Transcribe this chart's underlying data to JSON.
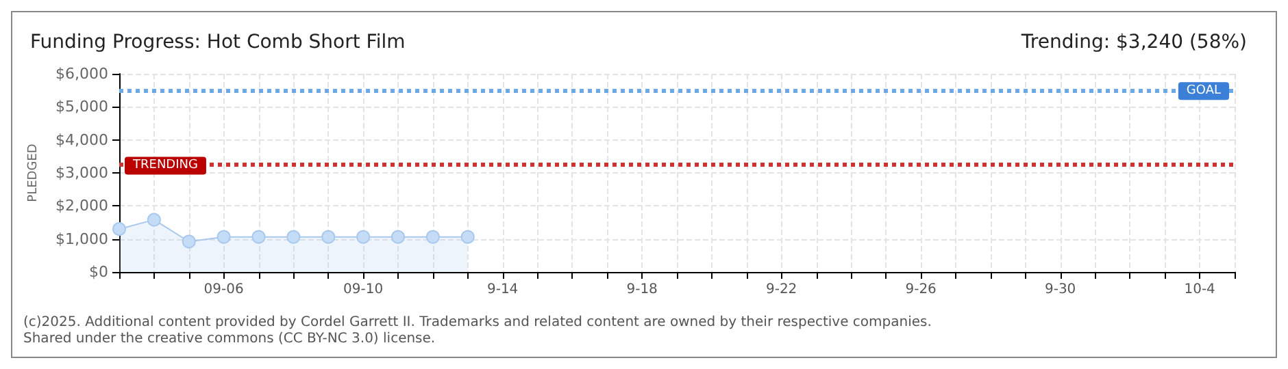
{
  "chart_data": {
    "type": "area",
    "title": "Funding Progress: Hot Comb Short Film",
    "subtitle": "Trending: $3,240 (58%)",
    "ylabel": "PLEDGED",
    "x": [
      "2025-09-03",
      "2025-09-04",
      "2025-09-05",
      "2025-09-06",
      "2025-09-07",
      "2025-09-08",
      "2025-09-09",
      "2025-09-10",
      "2025-09-11",
      "2025-09-12",
      "2025-09-13"
    ],
    "series": [
      {
        "color": "#a9c8ee",
        "values": [
          1300,
          1580,
          920,
          1060,
          1060,
          1060,
          1060,
          1060,
          1060,
          1060,
          1060
        ]
      }
    ],
    "xlim": [
      "2025-09-03",
      "2025-10-05"
    ],
    "xticks": [
      {
        "value": "2025-09-03",
        "label": null
      },
      {
        "value": "2025-09-04",
        "label": null
      },
      {
        "value": "2025-09-05",
        "label": null
      },
      {
        "value": "2025-09-06",
        "label": "09-06"
      },
      {
        "value": "2025-09-07",
        "label": null
      },
      {
        "value": "2025-09-08",
        "label": null
      },
      {
        "value": "2025-09-09",
        "label": null
      },
      {
        "value": "2025-09-10",
        "label": "09-10"
      },
      {
        "value": "2025-09-11",
        "label": null
      },
      {
        "value": "2025-09-12",
        "label": null
      },
      {
        "value": "2025-09-13",
        "label": null
      },
      {
        "value": "2025-09-14",
        "label": "9-14"
      },
      {
        "value": "2025-09-15",
        "label": null
      },
      {
        "value": "2025-09-16",
        "label": null
      },
      {
        "value": "2025-09-17",
        "label": null
      },
      {
        "value": "2025-09-18",
        "label": "9-18"
      },
      {
        "value": "2025-09-19",
        "label": null
      },
      {
        "value": "2025-09-20",
        "label": null
      },
      {
        "value": "2025-09-21",
        "label": null
      },
      {
        "value": "2025-09-22",
        "label": "9-22"
      },
      {
        "value": "2025-09-23",
        "label": null
      },
      {
        "value": "2025-09-24",
        "label": null
      },
      {
        "value": "2025-09-25",
        "label": null
      },
      {
        "value": "2025-09-26",
        "label": "9-26"
      },
      {
        "value": "2025-09-27",
        "label": null
      },
      {
        "value": "2025-09-28",
        "label": null
      },
      {
        "value": "2025-09-29",
        "label": null
      },
      {
        "value": "2025-09-30",
        "label": "9-30"
      },
      {
        "value": "2025-10-01",
        "label": null
      },
      {
        "value": "2025-10-02",
        "label": null
      },
      {
        "value": "2025-10-03",
        "label": null
      },
      {
        "value": "2025-10-04",
        "label": "10-4"
      },
      {
        "value": "2025-10-05",
        "label": null
      }
    ],
    "ylim": [
      0,
      6000
    ],
    "yticks": [
      {
        "value": 0,
        "label": "$0"
      },
      {
        "value": 1000,
        "label": "$1,000"
      },
      {
        "value": 2000,
        "label": "$2,000"
      },
      {
        "value": 3000,
        "label": "$3,000"
      },
      {
        "value": 4000,
        "label": "$4,000"
      },
      {
        "value": 5000,
        "label": "$5,000"
      },
      {
        "value": 6000,
        "label": "$6,000"
      }
    ],
    "ref_lines": [
      {
        "axis": "y",
        "value": 5500,
        "label": "GOAL",
        "color": "#6fa8e6",
        "line_style": "dotted"
      },
      {
        "axis": "y",
        "value": 3240,
        "label": "TRENDING",
        "color": "#cc3333",
        "line_style": "dotted"
      }
    ],
    "grid": true,
    "marker": "circle",
    "annotations": [
      "(c)2025. Additional content provided by Cordel Garrett II. Trademarks and related content are owned by their respective companies.",
      "Shared under the creative commons (CC BY-NC 3.0) license."
    ]
  }
}
